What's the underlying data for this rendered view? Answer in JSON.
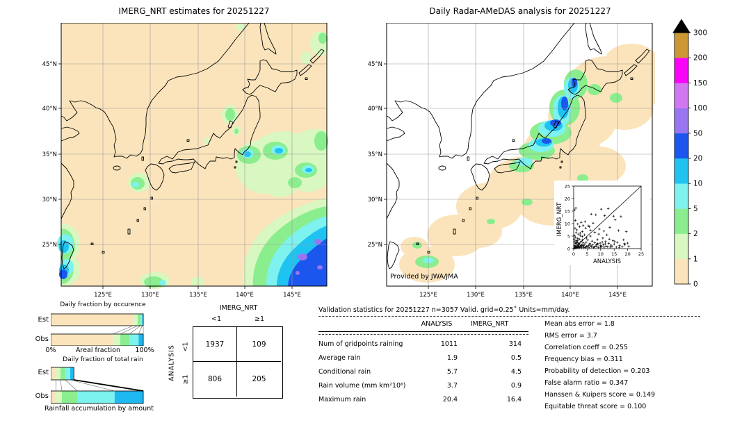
{
  "chart_data": {
    "left_map": {
      "type": "map",
      "title": "IMERG_NRT estimates for 20251227",
      "x_ticks": [
        "125°E",
        "130°E",
        "135°E",
        "140°E",
        "145°E"
      ],
      "y_ticks": [
        "45°N",
        "40°N",
        "35°N",
        "30°N",
        "25°N"
      ],
      "lon_range": [
        120.6,
        148.7
      ],
      "lat_range": [
        20.4,
        49.5
      ],
      "background_color": "#fbe4bb",
      "description": "IMERG_NRT daily precipitation estimate over Japan region; light rain patches over Honshu and seas, heavy blue/purple system in far southeast ocean corner, cyan cells east of Japan and near Taiwan"
    },
    "right_map": {
      "type": "map",
      "title": "Daily Radar-AMeDAS analysis for 20251227",
      "credit": "Provided by JWA/JMA",
      "x_ticks": [
        "125°E",
        "130°E",
        "135°E",
        "140°E",
        "145°E"
      ],
      "y_ticks": [
        "45°N",
        "40°N",
        "35°N",
        "30°N",
        "25°N"
      ],
      "background_color": "#ffffff",
      "description": "Radar-AMeDAS analysed precipitation confined to radar coverage (tan swath) along the Japanese archipelago; cyan/blue winter precipitation band along Sea of Japan coast of Honshu and Hokkaido, light rain near Okinawa"
    },
    "colorbar": {
      "units": "mm/day",
      "levels": [
        0,
        1,
        2,
        5,
        10,
        20,
        50,
        100,
        150,
        200,
        300
      ],
      "colors": [
        "#fbe4bb",
        "#d9f7c0",
        "#8aee8e",
        "#7df2ee",
        "#1fc3f2",
        "#1b57ee",
        "#9a75f0",
        "#d277f2",
        "#fb02fb",
        "#cd9733"
      ],
      "over_color": "#000000"
    },
    "bars_palette": [
      "#fbe4bb",
      "#d9f7c0",
      "#8aee8e",
      "#7df2ee",
      "#1fb9f2"
    ],
    "occurrence": {
      "type": "bar",
      "title": "Daily fraction by occurence",
      "xlabel": "Areal fraction",
      "x_min_label": "0%",
      "x_max_label": "100%",
      "rows": [
        "Est",
        "Obs"
      ],
      "bins_mm_day": [
        "0-1",
        "1-2",
        "2-5",
        "5-10",
        ">10"
      ],
      "est_pct": [
        89,
        5,
        3,
        2,
        1
      ],
      "obs_pct": [
        67,
        8,
        10,
        10,
        5
      ]
    },
    "total_rain": {
      "type": "bar",
      "title": "Daily fraction of total rain",
      "caption": "Rainfall accumulation by amount",
      "rows": [
        "Est",
        "Obs"
      ],
      "bins_mm_day": [
        "0-1",
        "1-2",
        "2-5",
        "5-10",
        ">10"
      ],
      "est_pct": [
        5.5,
        5,
        5,
        5.5,
        4
      ],
      "obs_pct": [
        5.5,
        6.5,
        17,
        40,
        31
      ]
    },
    "contingency": {
      "type": "table",
      "col_title": "IMERG_NRT",
      "row_title": "ANALYSIS",
      "col_labels": [
        "<1",
        "≥1"
      ],
      "row_labels": [
        "<1",
        "≥1"
      ],
      "values": [
        [
          "1937",
          "109"
        ],
        [
          "806",
          "205"
        ]
      ]
    },
    "validation": {
      "type": "table",
      "title": "Validation statistics for 20251227  n=3057 Valid. grid=0.25˚ Units=mm/day.",
      "col_headers": [
        "ANALYSIS",
        "IMERG_NRT"
      ],
      "rows": [
        {
          "label": "Num of gridpoints raining",
          "analysis": "1011",
          "imerg": "314"
        },
        {
          "label": "Average rain",
          "analysis": "1.9",
          "imerg": "0.5"
        },
        {
          "label": "Conditional rain",
          "analysis": "5.7",
          "imerg": "4.5"
        },
        {
          "label": "Rain volume (mm km²10⁶)",
          "analysis": "3.7",
          "imerg": "0.9"
        },
        {
          "label": "Maximum rain",
          "analysis": "20.4",
          "imerg": "16.4"
        }
      ],
      "stats": [
        {
          "label": "Mean abs error",
          "value": "1.8",
          "text": "Mean abs error =   1.8"
        },
        {
          "label": "RMS error",
          "value": "3.7",
          "text": "RMS error =   3.7"
        },
        {
          "label": "Correlation coeff",
          "value": "0.255",
          "text": "Correlation coeff =  0.255"
        },
        {
          "label": "Frequency bias",
          "value": "0.311",
          "text": "Frequency bias =  0.311"
        },
        {
          "label": "Probability of detection",
          "value": "0.203",
          "text": "Probability of detection =  0.203"
        },
        {
          "label": "False alarm ratio",
          "value": "0.347",
          "text": "False alarm ratio =  0.347"
        },
        {
          "label": "Hanssen & Kuipers score",
          "value": "0.149",
          "text": "Hanssen & Kuipers score =  0.149"
        },
        {
          "label": "Equitable threat score",
          "value": "0.100",
          "text": "Equitable threat score =  0.100"
        }
      ]
    },
    "inset_scatter": {
      "type": "scatter",
      "xlabel": "ANALYSIS",
      "ylabel": "IMERG_NRT",
      "xlim": [
        0,
        25
      ],
      "ylim": [
        0,
        25
      ],
      "ticks": [
        0,
        5,
        10,
        15,
        20,
        25
      ],
      "identity_line": true,
      "points": [
        [
          0.2,
          0.1
        ],
        [
          0.3,
          0.5
        ],
        [
          0.4,
          1.2
        ],
        [
          0.5,
          0.2
        ],
        [
          0.6,
          2.1
        ],
        [
          0.7,
          0.4
        ],
        [
          0.8,
          1.0
        ],
        [
          0.9,
          3.2
        ],
        [
          1.0,
          0.6
        ],
        [
          1.1,
          1.8
        ],
        [
          1.2,
          0.3
        ],
        [
          1.3,
          2.6
        ],
        [
          1.4,
          0.8
        ],
        [
          1.5,
          4.1
        ],
        [
          1.6,
          1.2
        ],
        [
          1.7,
          0.5
        ],
        [
          1.8,
          2.2
        ],
        [
          1.9,
          0.9
        ],
        [
          2.0,
          1.5
        ],
        [
          2.1,
          3.8
        ],
        [
          2.2,
          0.4
        ],
        [
          2.4,
          1.1
        ],
        [
          2.5,
          5.2
        ],
        [
          2.6,
          0.7
        ],
        [
          2.8,
          2.9
        ],
        [
          3.0,
          0.5
        ],
        [
          3.1,
          1.6
        ],
        [
          3.2,
          6.8
        ],
        [
          3.4,
          0.9
        ],
        [
          3.5,
          2.3
        ],
        [
          3.7,
          1.2
        ],
        [
          3.8,
          0.4
        ],
        [
          4.0,
          5.5
        ],
        [
          4.1,
          1.8
        ],
        [
          4.3,
          0.6
        ],
        [
          4.5,
          8.2
        ],
        [
          4.6,
          2.5
        ],
        [
          4.8,
          1.0
        ],
        [
          5.0,
          0.7
        ],
        [
          5.2,
          3.4
        ],
        [
          5.4,
          9.1
        ],
        [
          5.5,
          1.3
        ],
        [
          5.7,
          0.5
        ],
        [
          6.0,
          2.0
        ],
        [
          6.2,
          7.4
        ],
        [
          6.4,
          1.1
        ],
        [
          6.6,
          0.8
        ],
        [
          6.8,
          3.0
        ],
        [
          7.0,
          1.5
        ],
        [
          7.2,
          10.2
        ],
        [
          7.5,
          0.6
        ],
        [
          7.8,
          2.4
        ],
        [
          8.0,
          1.0
        ],
        [
          8.2,
          13.5
        ],
        [
          8.5,
          0.9
        ],
        [
          8.8,
          3.6
        ],
        [
          9.0,
          1.8
        ],
        [
          9.2,
          0.5
        ],
        [
          9.5,
          7.8
        ],
        [
          9.8,
          2.2
        ],
        [
          10.0,
          1.2
        ],
        [
          10.2,
          15.8
        ],
        [
          10.5,
          0.8
        ],
        [
          10.8,
          4.2
        ],
        [
          11.0,
          1.6
        ],
        [
          11.3,
          0.6
        ],
        [
          11.5,
          13.2
        ],
        [
          11.8,
          2.8
        ],
        [
          12.0,
          1.0
        ],
        [
          12.3,
          5.5
        ],
        [
          12.6,
          0.7
        ],
        [
          13.0,
          2.1
        ],
        [
          13.4,
          8.5
        ],
        [
          13.8,
          1.4
        ],
        [
          14.2,
          0.9
        ],
        [
          14.6,
          3.2
        ],
        [
          15.0,
          1.8
        ],
        [
          15.4,
          11.5
        ],
        [
          15.8,
          0.6
        ],
        [
          16.2,
          2.5
        ],
        [
          16.6,
          7.2
        ],
        [
          17.0,
          1.2
        ],
        [
          17.5,
          12.8
        ],
        [
          18.0,
          0.8
        ],
        [
          18.5,
          3.5
        ],
        [
          19.0,
          1.5
        ],
        [
          19.5,
          6.8
        ],
        [
          20.0,
          2.2
        ],
        [
          20.4,
          0.9
        ],
        [
          0.3,
          5.2
        ],
        [
          0.5,
          8.1
        ],
        [
          0.4,
          15.5
        ],
        [
          0.8,
          16.2
        ],
        [
          0.6,
          11.3
        ],
        [
          1.2,
          7.5
        ],
        [
          1.5,
          9.8
        ],
        [
          0.9,
          6.4
        ],
        [
          2.2,
          8.8
        ],
        [
          2.8,
          10.5
        ],
        [
          1.8,
          5.8
        ],
        [
          3.5,
          9.2
        ],
        [
          0.2,
          3.8
        ],
        [
          0.7,
          4.5
        ],
        [
          1.4,
          3.2
        ],
        [
          2.5,
          6.2
        ],
        [
          4.2,
          10.8
        ],
        [
          5.8,
          8.8
        ],
        [
          3.2,
          4.8
        ],
        [
          6.5,
          13.8
        ],
        [
          0.4,
          2.8
        ],
        [
          1.1,
          2.4
        ],
        [
          2.1,
          2.0
        ],
        [
          3.3,
          3.5
        ],
        [
          4.8,
          4.2
        ],
        [
          6.2,
          5.0
        ],
        [
          7.8,
          6.5
        ],
        [
          9.3,
          5.8
        ],
        [
          11.2,
          7.0
        ],
        [
          13.2,
          3.8
        ],
        [
          8.8,
          2.0
        ],
        [
          10.6,
          2.6
        ],
        [
          12.8,
          16.0
        ],
        [
          14.8,
          13.0
        ],
        [
          0.5,
          0.8
        ],
        [
          1.6,
          0.4
        ],
        [
          2.9,
          1.3
        ],
        [
          4.4,
          0.5
        ],
        [
          5.9,
          1.7
        ],
        [
          7.4,
          0.4
        ],
        [
          8.4,
          1.5
        ],
        [
          9.9,
          0.6
        ],
        [
          11.7,
          1.9
        ],
        [
          13.6,
          0.6
        ],
        [
          15.2,
          2.8
        ],
        [
          16.9,
          0.5
        ],
        [
          18.8,
          2.0
        ]
      ]
    }
  }
}
